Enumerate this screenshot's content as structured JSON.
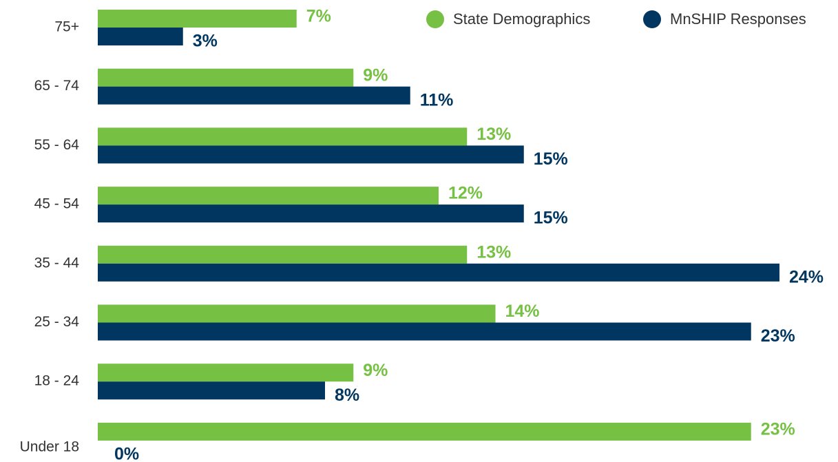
{
  "chart_data": {
    "type": "hbar",
    "categories": [
      "75+",
      "65 - 74",
      "55 - 64",
      "45 - 54",
      "35 - 44",
      "25 - 34",
      "18 - 24",
      "Under 18"
    ],
    "series": [
      {
        "name": "State Demographics",
        "color": "#76c043",
        "values": [
          7,
          9,
          13,
          12,
          13,
          14,
          9,
          23
        ],
        "value_labels": [
          "7%",
          "9%",
          "13%",
          "12%",
          "13%",
          "14%",
          "9%",
          "23%"
        ]
      },
      {
        "name": "MnSHIP Responses",
        "color": "#00365f",
        "values": [
          3,
          11,
          15,
          15,
          24,
          23,
          8,
          0
        ],
        "value_labels": [
          "3%",
          "11%",
          "15%",
          "15%",
          "24%",
          "23%",
          "8%",
          "0%"
        ]
      }
    ],
    "xlim": [
      0,
      24
    ],
    "legend": "top-right"
  }
}
